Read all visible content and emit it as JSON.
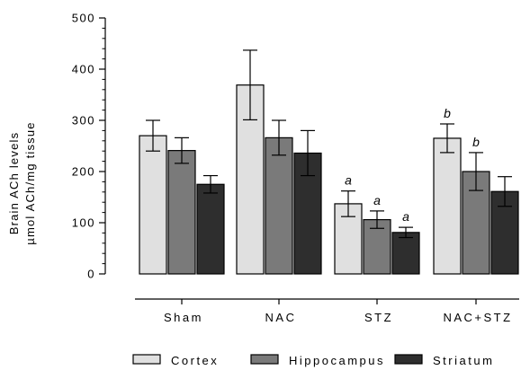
{
  "chart_data": {
    "type": "bar",
    "title": "",
    "ylabel_lines": [
      "Brain ACh levels",
      "µmol ACh/mg tissue"
    ],
    "xlabel": "",
    "ylim": [
      0,
      500
    ],
    "yticks": [
      0,
      100,
      200,
      300,
      400,
      500
    ],
    "ytick_labels": [
      "0",
      "100",
      "200",
      "300",
      "400",
      "500"
    ],
    "categories": [
      "Sham",
      "NAC",
      "STZ",
      "NAC+STZ"
    ],
    "series": [
      {
        "name": "Cortex",
        "color": "#e0e0e0",
        "values": [
          270,
          369,
          137,
          265
        ],
        "errors": [
          30,
          68,
          25,
          28
        ],
        "annotations": [
          "",
          "",
          "a",
          "b"
        ]
      },
      {
        "name": "Hippocampus",
        "color": "#7a7a7a",
        "values": [
          241,
          266,
          106,
          200
        ],
        "errors": [
          25,
          34,
          17,
          37
        ],
        "annotations": [
          "",
          "",
          "a",
          "b"
        ]
      },
      {
        "name": "Striatum",
        "color": "#2e2e2e",
        "values": [
          175,
          236,
          81,
          161
        ],
        "errors": [
          17,
          44,
          10,
          29
        ],
        "annotations": [
          "",
          "",
          "a",
          ""
        ]
      }
    ],
    "legend_position": "bottom",
    "grid": false
  }
}
